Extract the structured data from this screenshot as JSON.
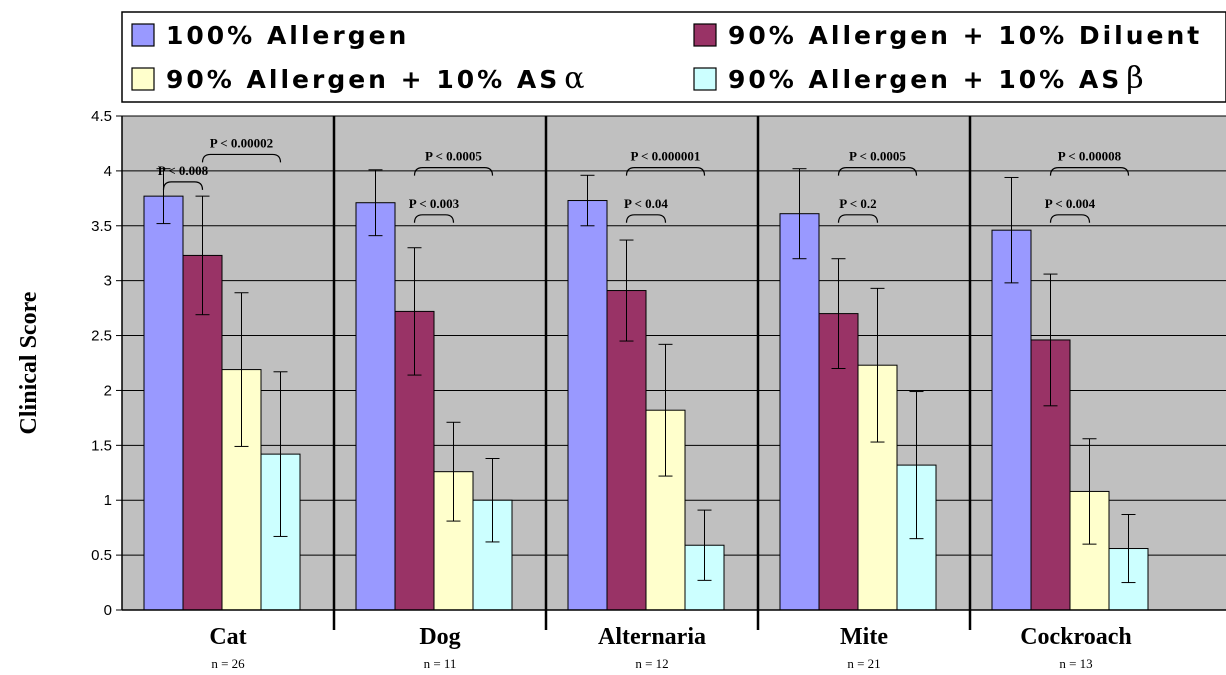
{
  "chart_data": {
    "type": "bar",
    "ylabel": "Clinical Score",
    "ylim": [
      0,
      4.5
    ],
    "yticks": [
      "0",
      "0.5",
      "1",
      "1.5",
      "2",
      "2.5",
      "3",
      "3.5",
      "4",
      "4.5"
    ],
    "grid": true,
    "legend_position": "top",
    "categories": [
      "Cat",
      "Dog",
      "Alternaria",
      "Mite",
      "Cockroach"
    ],
    "sample_sizes": [
      "n = 26",
      "n = 11",
      "n = 12",
      "n = 21",
      "n = 13"
    ],
    "series": [
      {
        "name": "100% Allergen",
        "legend_suffix": "",
        "color": "#9999ff",
        "values": [
          3.77,
          3.71,
          3.73,
          3.61,
          3.46
        ],
        "errors": [
          0.25,
          0.3,
          0.23,
          0.41,
          0.48
        ]
      },
      {
        "name": "90% Allergen + 10% Diluent",
        "legend_suffix": "",
        "color": "#993366",
        "values": [
          3.23,
          2.72,
          2.91,
          2.7,
          2.46
        ],
        "errors": [
          0.54,
          0.58,
          0.46,
          0.5,
          0.6
        ]
      },
      {
        "name": "90% Allergen + 10% AS",
        "legend_suffix": "α",
        "color": "#ffffcc",
        "values": [
          2.19,
          1.26,
          1.82,
          2.23,
          1.08
        ],
        "errors": [
          0.7,
          0.45,
          0.6,
          0.7,
          0.48
        ]
      },
      {
        "name": "90% Allergen + 10% AS",
        "legend_suffix": "β",
        "color": "#ccffff",
        "values": [
          1.42,
          1.0,
          0.59,
          1.32,
          0.56
        ],
        "errors": [
          0.75,
          0.38,
          0.32,
          0.67,
          0.31
        ]
      }
    ],
    "annotations": [
      {
        "text": "P < 0.008",
        "category": 0,
        "from": 0,
        "to": 1,
        "y": 3.9
      },
      {
        "text": "P < 0.00002",
        "category": 0,
        "from": 1,
        "to": 3,
        "y": 4.15
      },
      {
        "text": "P < 0.003",
        "category": 1,
        "from": 1,
        "to": 2,
        "y": 3.6
      },
      {
        "text": "P < 0.0005",
        "category": 1,
        "from": 1,
        "to": 3,
        "y": 4.03
      },
      {
        "text": "P < 0.04",
        "category": 2,
        "from": 1,
        "to": 2,
        "y": 3.6
      },
      {
        "text": "P < 0.000001",
        "category": 2,
        "from": 1,
        "to": 3,
        "y": 4.03
      },
      {
        "text": "P < 0.2",
        "category": 3,
        "from": 1,
        "to": 2,
        "y": 3.6
      },
      {
        "text": "P < 0.0005",
        "category": 3,
        "from": 1,
        "to": 3,
        "y": 4.03
      },
      {
        "text": "P < 0.004",
        "category": 4,
        "from": 1,
        "to": 2,
        "y": 3.6
      },
      {
        "text": "P < 0.00008",
        "category": 4,
        "from": 1,
        "to": 3,
        "y": 4.03
      }
    ]
  }
}
